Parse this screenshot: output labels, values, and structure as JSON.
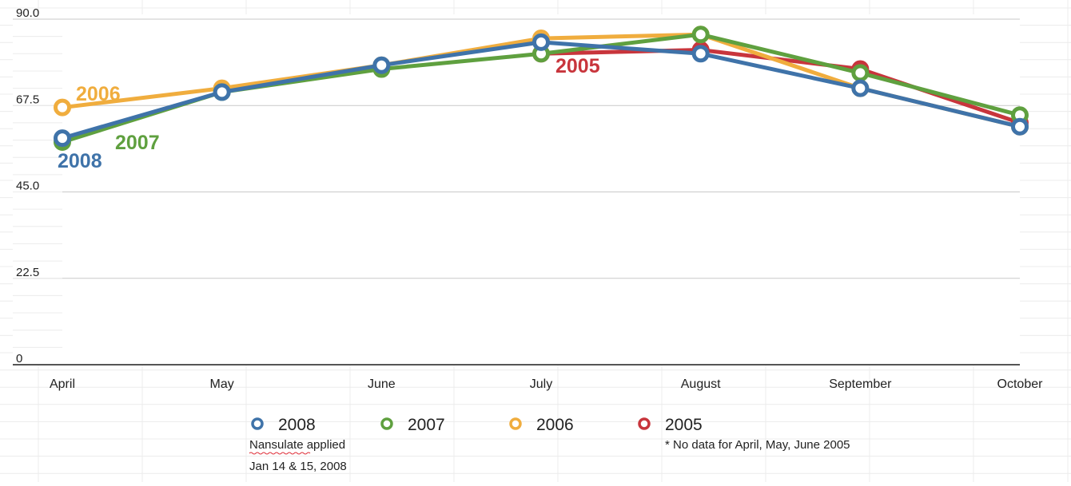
{
  "chart_data": {
    "type": "line",
    "categories": [
      "April",
      "May",
      "June",
      "July",
      "August",
      "September",
      "October"
    ],
    "ylim": [
      0,
      90
    ],
    "yticks": [
      "90.0",
      "67.5",
      "45.0",
      "22.5",
      "0"
    ],
    "grid": true,
    "series": [
      {
        "name": "2005",
        "color": "#c8353c",
        "values": [
          null,
          null,
          null,
          81,
          82,
          77,
          63
        ]
      },
      {
        "name": "2006",
        "color": "#f0ad3e",
        "values": [
          67,
          72,
          78,
          85,
          86,
          72,
          62
        ]
      },
      {
        "name": "2007",
        "color": "#5fa03f",
        "values": [
          58,
          71,
          77,
          81,
          86,
          76,
          65
        ]
      },
      {
        "name": "2008",
        "color": "#3f73a9",
        "values": [
          59,
          71,
          78,
          84,
          81,
          72,
          62
        ]
      }
    ],
    "series_labels": [
      "2006",
      "2007",
      "2008",
      "2005"
    ],
    "legend": [
      "2008",
      "2007",
      "2006",
      "2005"
    ],
    "annotations": {
      "nansulate_line1": "Nansulate applied",
      "nansulate_line2": "Jan 14 & 15, 2008",
      "no_data": "* No data for April, May, June 2005"
    }
  }
}
